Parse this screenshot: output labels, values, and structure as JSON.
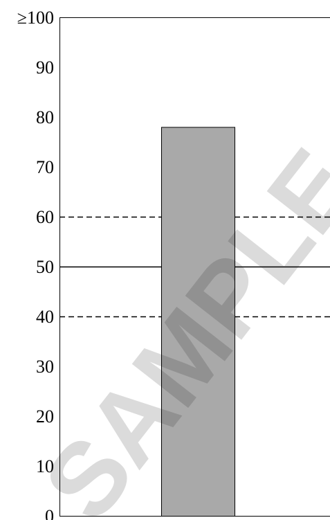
{
  "chart_data": {
    "type": "bar",
    "categories": [
      ""
    ],
    "values": [
      78
    ],
    "ylim": [
      0,
      100
    ],
    "yticks": [
      0,
      10,
      20,
      30,
      40,
      50,
      60,
      70,
      80,
      90,
      100
    ],
    "ytick_labels": [
      "0",
      "10",
      "20",
      "30",
      "40",
      "50",
      "60",
      "70",
      "80",
      "90",
      "≥100"
    ],
    "reference_lines": [
      {
        "value": 60,
        "style": "dashed"
      },
      {
        "value": 50,
        "style": "solid"
      },
      {
        "value": 40,
        "style": "dashed"
      }
    ],
    "bar_color": "#a9a9a9",
    "grid": false
  },
  "watermark": {
    "text": "SAMPLE"
  }
}
